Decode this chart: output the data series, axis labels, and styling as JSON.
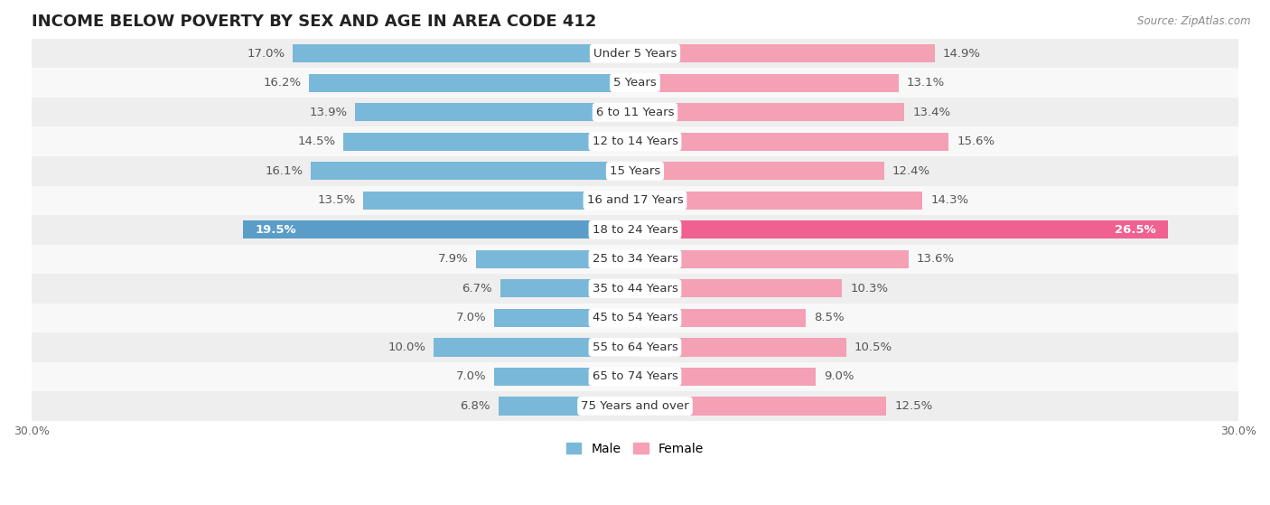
{
  "title": "INCOME BELOW POVERTY BY SEX AND AGE IN AREA CODE 412",
  "source": "Source: ZipAtlas.com",
  "categories": [
    "Under 5 Years",
    "5 Years",
    "6 to 11 Years",
    "12 to 14 Years",
    "15 Years",
    "16 and 17 Years",
    "18 to 24 Years",
    "25 to 34 Years",
    "35 to 44 Years",
    "45 to 54 Years",
    "55 to 64 Years",
    "65 to 74 Years",
    "75 Years and over"
  ],
  "male_values": [
    17.0,
    16.2,
    13.9,
    14.5,
    16.1,
    13.5,
    19.5,
    7.9,
    6.7,
    7.0,
    10.0,
    7.0,
    6.8
  ],
  "female_values": [
    14.9,
    13.1,
    13.4,
    15.6,
    12.4,
    14.3,
    26.5,
    13.6,
    10.3,
    8.5,
    10.5,
    9.0,
    12.5
  ],
  "male_color": "#7ab8d9",
  "female_color": "#f4a0b5",
  "male_highlight_color": "#5a9dc8",
  "female_highlight_color": "#f06090",
  "row_bg_even": "#eeeeee",
  "row_bg_odd": "#f8f8f8",
  "xlim": 30.0,
  "bar_height": 0.62,
  "title_fontsize": 13,
  "label_fontsize": 9.5,
  "cat_fontsize": 9.5,
  "axis_fontsize": 9,
  "source_fontsize": 8.5,
  "legend_fontsize": 10
}
